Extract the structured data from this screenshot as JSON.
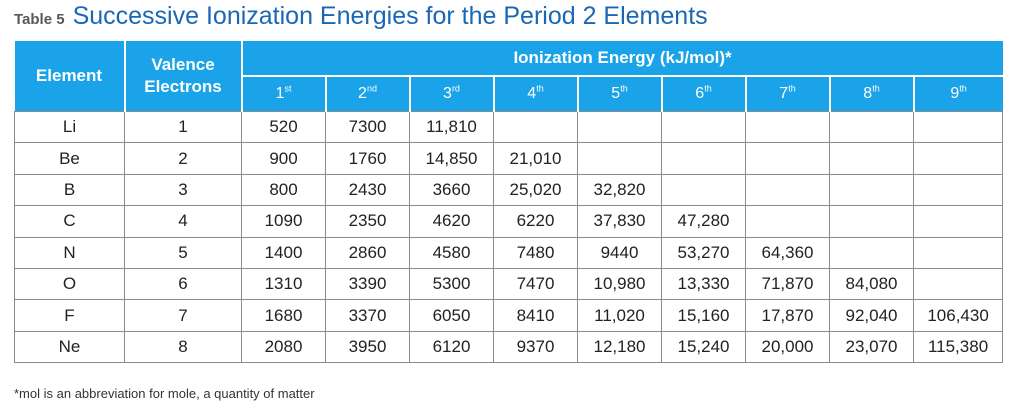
{
  "caption": {
    "table_number": "Table 5",
    "title": "Successive Ionization Energies for the Period 2 Elements"
  },
  "header": {
    "element": "Element",
    "valence": "Valence Electrons",
    "group": "Ionization Energy (kJ/mol)*",
    "ordinals": [
      {
        "num": "1",
        "suf": "st"
      },
      {
        "num": "2",
        "suf": "nd"
      },
      {
        "num": "3",
        "suf": "rd"
      },
      {
        "num": "4",
        "suf": "th"
      },
      {
        "num": "5",
        "suf": "th"
      },
      {
        "num": "6",
        "suf": "th"
      },
      {
        "num": "7",
        "suf": "th"
      },
      {
        "num": "8",
        "suf": "th"
      },
      {
        "num": "9",
        "suf": "th"
      }
    ]
  },
  "rows": [
    {
      "element": "Li",
      "valence": "1",
      "energies": [
        "520",
        "7300",
        "11,810",
        "",
        "",
        "",
        "",
        "",
        ""
      ]
    },
    {
      "element": "Be",
      "valence": "2",
      "energies": [
        "900",
        "1760",
        "14,850",
        "21,010",
        "",
        "",
        "",
        "",
        ""
      ]
    },
    {
      "element": "B",
      "valence": "3",
      "energies": [
        "800",
        "2430",
        "3660",
        "25,020",
        "32,820",
        "",
        "",
        "",
        ""
      ]
    },
    {
      "element": "C",
      "valence": "4",
      "energies": [
        "1090",
        "2350",
        "4620",
        "6220",
        "37,830",
        "47,280",
        "",
        "",
        ""
      ]
    },
    {
      "element": "N",
      "valence": "5",
      "energies": [
        "1400",
        "2860",
        "4580",
        "7480",
        "9440",
        "53,270",
        "64,360",
        "",
        ""
      ]
    },
    {
      "element": "O",
      "valence": "6",
      "energies": [
        "1310",
        "3390",
        "5300",
        "7470",
        "10,980",
        "13,330",
        "71,870",
        "84,080",
        ""
      ]
    },
    {
      "element": "F",
      "valence": "7",
      "energies": [
        "1680",
        "3370",
        "6050",
        "8410",
        "11,020",
        "15,160",
        "17,870",
        "92,040",
        "106,430"
      ]
    },
    {
      "element": "Ne",
      "valence": "8",
      "energies": [
        "2080",
        "3950",
        "6120",
        "9370",
        "12,180",
        "15,240",
        "20,000",
        "23,070",
        "115,380"
      ]
    }
  ],
  "footnote": "*mol is an abbreviation for mole, a quantity of matter",
  "colors": {
    "header_bg": "#1aa3e8",
    "title": "#1a67b5",
    "grid": "#8a8a8a"
  }
}
